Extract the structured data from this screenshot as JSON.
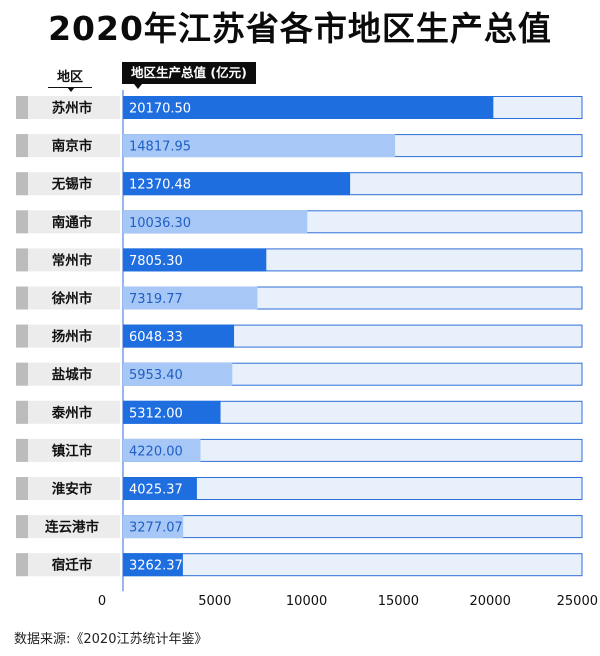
{
  "title": "2020年江苏省各市地区生产总值",
  "region_header": "地区",
  "value_header": "地区生产总值 (亿元)",
  "source": "数据来源:《2020江苏统计年鉴》",
  "colors": {
    "dark_bar": "#1f6ee0",
    "light_bar": "#a7c8f6",
    "track": "#e8f0fb",
    "track_border": "#2f6fd8",
    "label_bg": "#ececec",
    "label_tab": "#bcbcbc"
  },
  "chart_data": {
    "type": "bar",
    "orientation": "horizontal",
    "categories": [
      "苏州市",
      "南京市",
      "无锡市",
      "南通市",
      "常州市",
      "徐州市",
      "扬州市",
      "盐城市",
      "泰州市",
      "镇江市",
      "淮安市",
      "连云港市",
      "宿迁市"
    ],
    "values": [
      20170.5,
      14817.95,
      12370.48,
      10036.3,
      7805.3,
      7319.77,
      6048.33,
      5953.4,
      5312.0,
      4220.0,
      4025.37,
      3277.07,
      3262.37
    ],
    "value_labels": [
      "20170.50",
      "14817.95",
      "12370.48",
      "10036.30",
      "7805.30",
      "7319.77",
      "6048.33",
      "5953.40",
      "5312.00",
      "4220.00",
      "4025.37",
      "3277.07",
      "3262.37"
    ],
    "xlim": [
      0,
      25000
    ],
    "xticks": [
      0,
      5000,
      10000,
      15000,
      20000,
      25000
    ],
    "xtick_labels": [
      "0",
      "5000",
      "10000",
      "15000",
      "20000",
      "25000"
    ],
    "xlabel": "",
    "ylabel": "地区",
    "grid": false,
    "legend": "none"
  }
}
